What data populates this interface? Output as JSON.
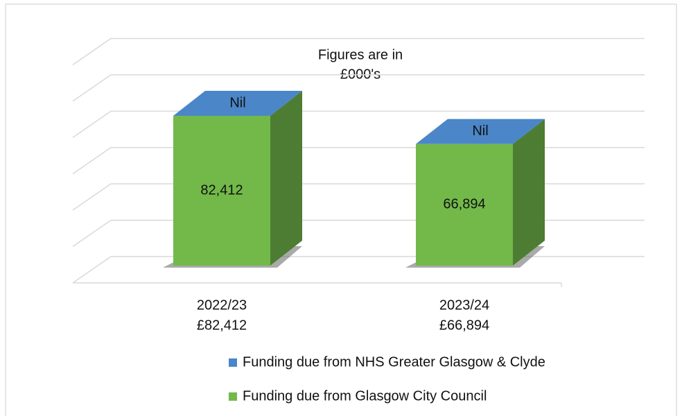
{
  "chart_data": {
    "type": "bar3d_stacked",
    "annotation": [
      "Figures are in",
      "£000's"
    ],
    "categories": [
      "2022/23",
      "2023/24"
    ],
    "category_sublabels": [
      "£82,412",
      "£66,894"
    ],
    "series": [
      {
        "name": "Funding due from NHS Greater Glasgow & Clyde",
        "color": "#4a86c8",
        "values": [
          0,
          0
        ],
        "value_labels": [
          "Nil",
          "Nil"
        ]
      },
      {
        "name": "Funding due from Glasgow City Council",
        "color": "#72b94a",
        "values": [
          82412,
          66894
        ],
        "value_labels": [
          "82,412",
          "66,894"
        ]
      }
    ],
    "ylim": [
      0,
      120000
    ],
    "yticks": [
      0,
      20000,
      40000,
      60000,
      80000,
      100000,
      120000
    ],
    "grid": true
  }
}
